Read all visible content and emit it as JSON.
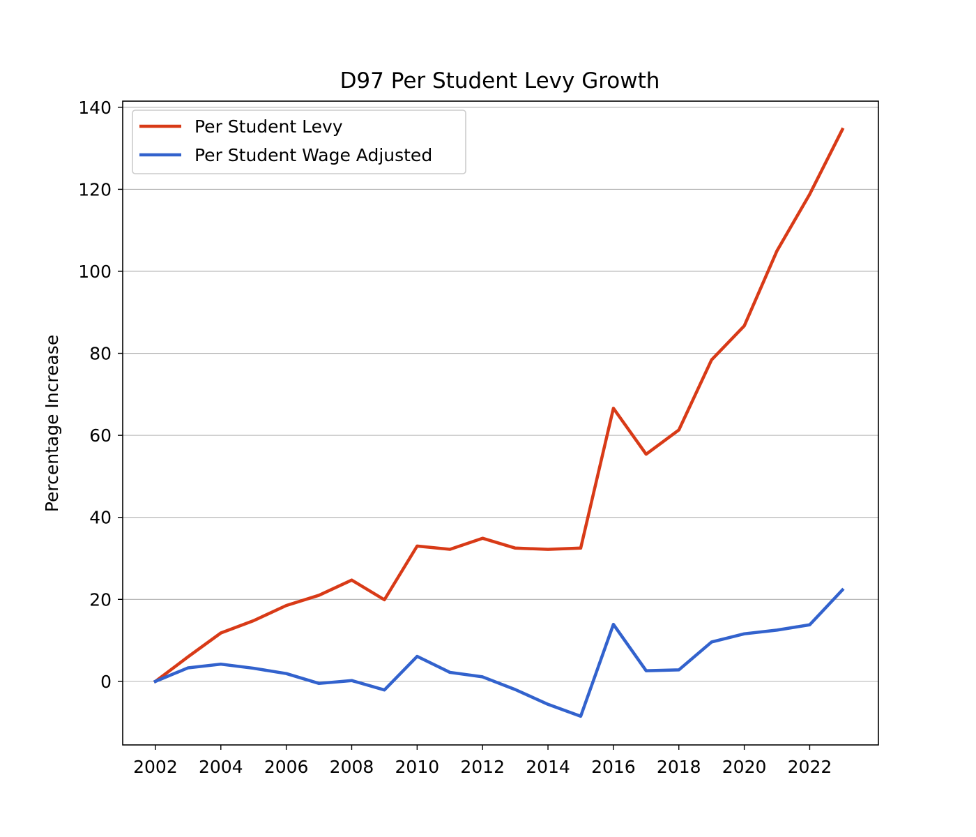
{
  "chart_data": {
    "type": "line",
    "title": "D97 Per Student Levy Growth",
    "xlabel": "",
    "ylabel": "Percentage Increase",
    "x": [
      2002,
      2003,
      2004,
      2005,
      2006,
      2007,
      2008,
      2009,
      2010,
      2011,
      2012,
      2013,
      2014,
      2015,
      2016,
      2017,
      2018,
      2019,
      2020,
      2021,
      2022,
      2023
    ],
    "xlim": [
      2001,
      2024.1
    ],
    "ylim": [
      -15.5,
      141.5
    ],
    "xticks": [
      2002,
      2004,
      2006,
      2008,
      2010,
      2012,
      2014,
      2016,
      2018,
      2020,
      2022
    ],
    "yticks": [
      0,
      20,
      40,
      60,
      80,
      100,
      120,
      140
    ],
    "grid": "horizontal",
    "legend_position": "top-left",
    "series": [
      {
        "name": "Per Student Levy",
        "color": "#d83a17",
        "values": [
          0,
          6,
          11.8,
          14.8,
          18.5,
          21,
          24.7,
          19.9,
          33,
          32.2,
          34.9,
          32.5,
          32.2,
          32.5,
          66.6,
          55.4,
          61.3,
          78.4,
          86.7,
          105,
          118.8,
          134.6
        ]
      },
      {
        "name": "Per Student Wage Adjusted",
        "color": "#3262cd",
        "values": [
          0,
          3.3,
          4.2,
          3.2,
          1.9,
          -0.5,
          0.2,
          -2.1,
          6.1,
          2.2,
          1.1,
          -2,
          -5.6,
          -8.5,
          13.9,
          2.6,
          2.8,
          9.6,
          11.6,
          12.5,
          13.8,
          22.3
        ]
      }
    ]
  }
}
